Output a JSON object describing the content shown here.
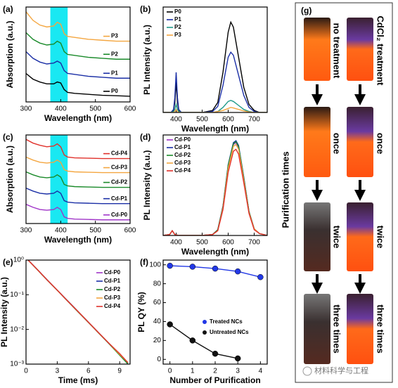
{
  "chart_data": [
    {
      "type": "line",
      "panel_label": "(a)",
      "xlabel": "Wavelength (nm)",
      "ylabel": "Absorption (a.u.)",
      "xlim": [
        300,
        600
      ],
      "xticks": [
        300,
        400,
        500,
        600
      ],
      "ylim": [
        0,
        10
      ],
      "legend": "inline-right",
      "highlight": {
        "x": [
          370,
          420
        ],
        "color": "#19e8f2"
      },
      "x": [
        300,
        320,
        340,
        360,
        380,
        390,
        400,
        410,
        420,
        440,
        480,
        520,
        560,
        600
      ],
      "series": [
        {
          "name": "P3",
          "color": "#f4a640",
          "values": [
            9.5,
            8.6,
            8.1,
            7.9,
            8.0,
            8.4,
            8.2,
            7.2,
            6.9,
            6.8,
            6.6,
            6.5,
            6.4,
            6.4
          ]
        },
        {
          "name": "P2",
          "color": "#1a8a2a",
          "values": [
            7.3,
            6.6,
            6.2,
            6.0,
            6.1,
            6.4,
            6.2,
            5.3,
            5.0,
            4.9,
            4.7,
            4.6,
            4.5,
            4.5
          ]
        },
        {
          "name": "P1",
          "color": "#1b2fa6",
          "values": [
            5.3,
            4.6,
            4.2,
            4.0,
            4.1,
            4.3,
            4.1,
            3.3,
            3.0,
            2.9,
            2.7,
            2.6,
            2.5,
            2.5
          ]
        },
        {
          "name": "P0",
          "color": "#000000",
          "values": [
            3.0,
            2.4,
            2.1,
            1.9,
            1.9,
            2.1,
            2.0,
            1.3,
            1.0,
            0.9,
            0.8,
            0.7,
            0.65,
            0.6
          ]
        }
      ]
    },
    {
      "type": "line",
      "panel_label": "(b)",
      "xlabel": "Wavelength (nm)",
      "ylabel": "PL Intensity (a.u.)",
      "xlim": [
        350,
        750
      ],
      "xticks": [
        400,
        500,
        600,
        700
      ],
      "ylim": [
        0,
        1.05
      ],
      "legend": "upper-left",
      "x": [
        350,
        380,
        390,
        395,
        400,
        405,
        410,
        420,
        450,
        500,
        540,
        560,
        580,
        600,
        610,
        620,
        640,
        660,
        680,
        700,
        720,
        750
      ],
      "series": [
        {
          "name": "P0",
          "color": "#000000",
          "values": [
            0,
            0,
            0.02,
            0.1,
            0.3,
            0.1,
            0.02,
            0,
            0,
            0,
            0.02,
            0.1,
            0.4,
            0.8,
            0.9,
            0.85,
            0.55,
            0.25,
            0.08,
            0.02,
            0,
            0
          ]
        },
        {
          "name": "P1",
          "color": "#1b2fa6",
          "values": [
            0,
            0,
            0.03,
            0.15,
            0.4,
            0.15,
            0.03,
            0,
            0,
            0,
            0.01,
            0.06,
            0.27,
            0.55,
            0.6,
            0.57,
            0.37,
            0.17,
            0.05,
            0.01,
            0,
            0
          ]
        },
        {
          "name": "P2",
          "color": "#1f9a8a",
          "values": [
            0,
            0,
            0.01,
            0.03,
            0.08,
            0.03,
            0.01,
            0,
            0,
            0,
            0,
            0.01,
            0.05,
            0.11,
            0.12,
            0.11,
            0.07,
            0.03,
            0.01,
            0,
            0,
            0
          ]
        },
        {
          "name": "P3",
          "color": "#f4a640",
          "values": [
            0,
            0,
            0,
            0.01,
            0.03,
            0.01,
            0,
            0,
            0,
            0,
            0,
            0.01,
            0.02,
            0.04,
            0.05,
            0.045,
            0.03,
            0.015,
            0.005,
            0,
            0,
            0
          ]
        }
      ]
    },
    {
      "type": "line",
      "panel_label": "(c)",
      "xlabel": "Wavelength (nm)",
      "ylabel": "Absorption (a.u.)",
      "xlim": [
        300,
        600
      ],
      "xticks": [
        300,
        400,
        500,
        600
      ],
      "ylim": [
        0,
        12
      ],
      "legend": "inline-right",
      "highlight": {
        "x": [
          370,
          420
        ],
        "color": "#19e8f2"
      },
      "x": [
        300,
        320,
        340,
        360,
        380,
        390,
        400,
        410,
        420,
        440,
        480,
        520,
        560,
        600
      ],
      "series": [
        {
          "name": "Cd-P4",
          "color": "#e0312b",
          "values": [
            11.4,
            10.9,
            10.6,
            10.4,
            10.5,
            10.8,
            10.4,
            9.3,
            9.0,
            8.9,
            8.85,
            8.8,
            8.8,
            8.8
          ]
        },
        {
          "name": "Cd-P3",
          "color": "#f4a640",
          "values": [
            9.0,
            8.6,
            8.3,
            8.2,
            8.3,
            8.6,
            8.3,
            7.3,
            7.1,
            7.0,
            6.95,
            6.9,
            6.9,
            6.9
          ]
        },
        {
          "name": "Cd-P2",
          "color": "#1a8a2a",
          "values": [
            7.0,
            6.6,
            6.3,
            6.2,
            6.3,
            6.6,
            6.3,
            5.3,
            5.1,
            5.0,
            4.95,
            4.9,
            4.9,
            4.9
          ]
        },
        {
          "name": "Cd-P1",
          "color": "#1b2fa6",
          "values": [
            4.8,
            4.4,
            4.1,
            4.0,
            4.1,
            4.4,
            4.1,
            3.1,
            2.9,
            2.8,
            2.75,
            2.7,
            2.7,
            2.7
          ]
        },
        {
          "name": "Cd-P0",
          "color": "#a035c8",
          "values": [
            2.6,
            2.2,
            1.9,
            1.8,
            1.9,
            2.2,
            1.9,
            0.9,
            0.7,
            0.6,
            0.55,
            0.5,
            0.5,
            0.5
          ]
        }
      ]
    },
    {
      "type": "line",
      "panel_label": "(d)",
      "xlabel": "Wavelength (nm)",
      "ylabel": "PL Intensity (a.u.)",
      "xlim": [
        350,
        750
      ],
      "xticks": [
        400,
        500,
        600,
        700
      ],
      "ylim": [
        0,
        1.05
      ],
      "legend": "upper-left",
      "x": [
        350,
        375,
        385,
        395,
        410,
        450,
        500,
        540,
        560,
        580,
        600,
        620,
        630,
        640,
        660,
        680,
        700,
        720,
        750
      ],
      "series": [
        {
          "name": "Cd-P0",
          "color": "#a035c8",
          "values": [
            0,
            0.01,
            0.05,
            0.01,
            0,
            0,
            0,
            0.01,
            0.06,
            0.3,
            0.72,
            0.95,
            0.97,
            0.92,
            0.6,
            0.25,
            0.07,
            0.02,
            0
          ]
        },
        {
          "name": "Cd-P1",
          "color": "#1b2fa6",
          "values": [
            0,
            0.01,
            0.05,
            0.01,
            0,
            0,
            0,
            0.01,
            0.06,
            0.31,
            0.74,
            0.97,
            0.99,
            0.94,
            0.61,
            0.25,
            0.07,
            0.02,
            0
          ]
        },
        {
          "name": "Cd-P2",
          "color": "#1a8a2a",
          "values": [
            0,
            0.01,
            0.05,
            0.01,
            0,
            0,
            0,
            0.01,
            0.06,
            0.3,
            0.73,
            0.96,
            0.98,
            0.93,
            0.6,
            0.25,
            0.07,
            0.02,
            0
          ]
        },
        {
          "name": "Cd-P3",
          "color": "#f4a640",
          "values": [
            0,
            0.01,
            0.05,
            0.01,
            0,
            0,
            0,
            0.01,
            0.05,
            0.29,
            0.7,
            0.93,
            0.95,
            0.9,
            0.58,
            0.24,
            0.07,
            0.02,
            0
          ]
        },
        {
          "name": "Cd-P4",
          "color": "#e0312b",
          "values": [
            0,
            0.01,
            0.05,
            0.01,
            0,
            0,
            0,
            0.01,
            0.05,
            0.27,
            0.66,
            0.88,
            0.9,
            0.85,
            0.55,
            0.23,
            0.06,
            0.02,
            0
          ]
        }
      ]
    },
    {
      "type": "line",
      "panel_label": "(e)",
      "xlabel": "Time (ms)",
      "ylabel": "PL Intensity (a.u.)",
      "xlim": [
        0,
        10
      ],
      "xticks": [
        0,
        3,
        6,
        9
      ],
      "log_y": true,
      "ylim": [
        0.001,
        1
      ],
      "legend": "upper-right",
      "yticks": [
        {
          "value": 1,
          "label": "10⁰"
        },
        {
          "value": 0.1,
          "label": "10⁻¹"
        },
        {
          "value": 0.01,
          "label": "10⁻²"
        },
        {
          "value": 0.001,
          "label": "10⁻³"
        }
      ],
      "x": [
        0.2,
        1,
        2,
        3,
        4,
        5,
        6,
        7,
        8,
        9,
        9.8
      ],
      "series": [
        {
          "name": "Cd-P0",
          "color": "#a035c8",
          "values": [
            1,
            0.565,
            0.272,
            0.135,
            0.066,
            0.032,
            0.016,
            0.0078,
            0.0038,
            0.0019,
            0.001
          ]
        },
        {
          "name": "Cd-P1",
          "color": "#1b2fa6",
          "values": [
            1,
            0.57,
            0.275,
            0.136,
            0.067,
            0.033,
            0.0162,
            0.0079,
            0.0039,
            0.0019,
            0.001
          ]
        },
        {
          "name": "Cd-P2",
          "color": "#1a8a2a",
          "values": [
            1,
            0.56,
            0.27,
            0.134,
            0.065,
            0.032,
            0.0158,
            0.0077,
            0.0038,
            0.0018,
            0.001
          ]
        },
        {
          "name": "Cd-P3",
          "color": "#f4a640",
          "values": [
            1,
            0.565,
            0.273,
            0.135,
            0.066,
            0.0325,
            0.016,
            0.0078,
            0.0039,
            0.0019,
            0.0011
          ]
        },
        {
          "name": "Cd-P4",
          "color": "#e0312b",
          "values": [
            1,
            0.568,
            0.274,
            0.136,
            0.066,
            0.033,
            0.0161,
            0.0079,
            0.0039,
            0.002,
            0.0011
          ]
        }
      ]
    },
    {
      "type": "line",
      "panel_label": "(f)",
      "xlabel": "Number of Purification",
      "ylabel": "PL QY (%)",
      "xlim": [
        -0.3,
        4.3
      ],
      "xticks": [
        0,
        1,
        2,
        3,
        4
      ],
      "ylim": [
        -5,
        105
      ],
      "yticks": [
        0,
        20,
        40,
        60,
        80,
        100
      ],
      "legend": "center-right",
      "markers": true,
      "x": [
        0,
        1,
        2,
        3,
        4
      ],
      "series": [
        {
          "name": "Treated NCs",
          "color": "#2238e6",
          "values": [
            99,
            98,
            96,
            93,
            87
          ]
        },
        {
          "name": "Untreated NCs",
          "color": "#111111",
          "values": [
            37,
            20,
            6,
            1,
            null
          ]
        }
      ]
    }
  ],
  "photo_panel": {
    "panel_label": "(g)",
    "axis_label": "Purification times",
    "column_labels": [
      "no treatment",
      "CdCl₂ treatment"
    ],
    "row_labels": [
      "once",
      "twice",
      "three times"
    ],
    "watermark": "材料科学与工程"
  }
}
